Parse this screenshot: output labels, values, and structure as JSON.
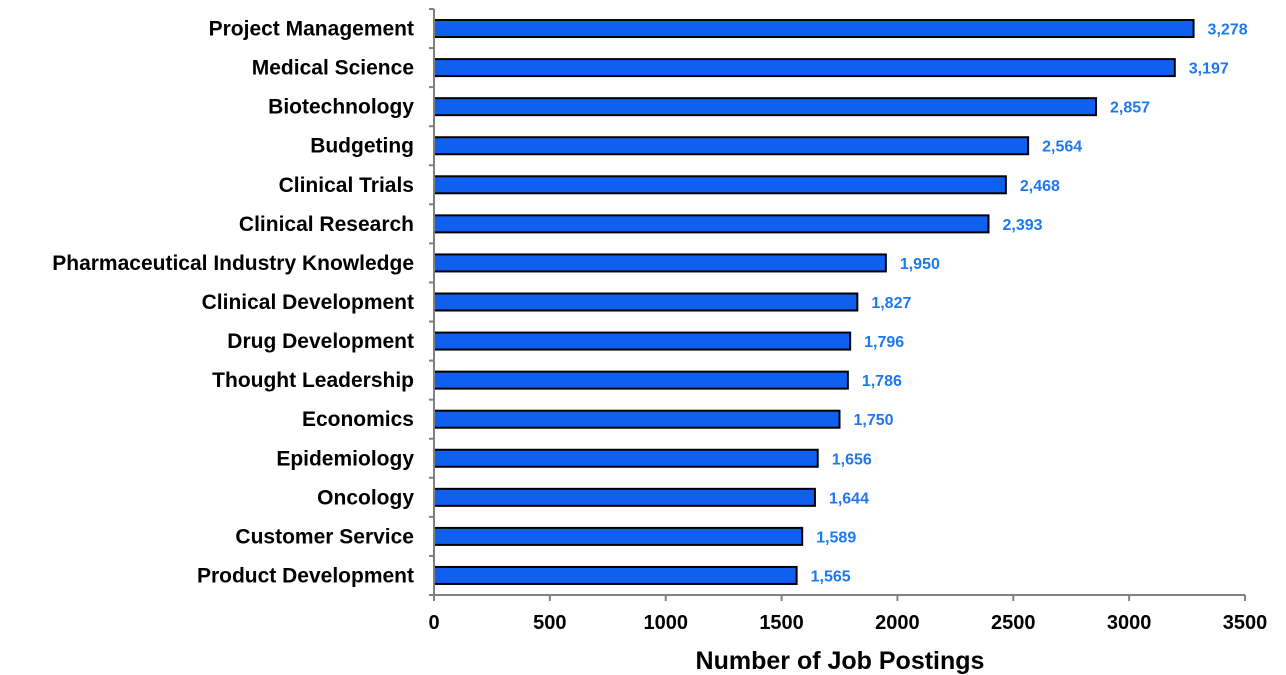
{
  "chart_data": {
    "type": "bar",
    "orientation": "horizontal",
    "categories": [
      "Project Management",
      "Medical Science",
      "Biotechnology",
      "Budgeting",
      "Clinical Trials",
      "Clinical Research",
      "Pharmaceutical Industry Knowledge",
      "Clinical Development",
      "Drug Development",
      "Thought Leadership",
      "Economics",
      "Epidemiology",
      "Oncology",
      "Customer Service",
      "Product Development"
    ],
    "values": [
      3278,
      3197,
      2857,
      2564,
      2468,
      2393,
      1950,
      1827,
      1796,
      1786,
      1750,
      1656,
      1644,
      1589,
      1565
    ],
    "data_labels": [
      "3,278",
      "3,197",
      "2,857",
      "2,564",
      "2,468",
      "2,393",
      "1,950",
      "1,827",
      "1,796",
      "1,786",
      "1,750",
      "1,656",
      "1,644",
      "1,589",
      "1,565"
    ],
    "xlabel": "Number of Job Postings",
    "ylabel": "",
    "title": "",
    "xlim": [
      0,
      3500
    ],
    "xticks": [
      0,
      500,
      1000,
      1500,
      2000,
      2500,
      3000,
      3500
    ],
    "xtick_labels": [
      "0",
      "500",
      "1000",
      "1500",
      "2000",
      "2500",
      "3000",
      "3500"
    ],
    "grid": false,
    "legend": "none",
    "colors": {
      "bar_fill": "#1060F0",
      "bar_stroke": "#000000",
      "data_label": "#1E78F0",
      "axis": "#808080"
    }
  }
}
